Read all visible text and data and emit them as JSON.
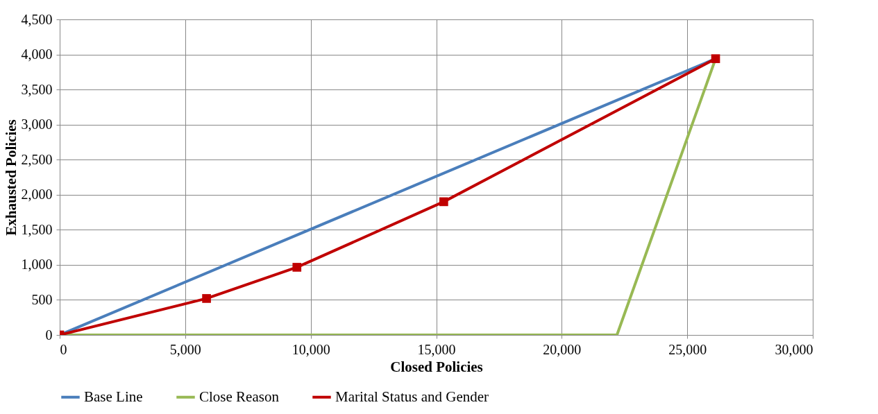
{
  "chart_data": {
    "type": "line",
    "xlabel": "Closed Policies",
    "ylabel": "Exhausted Policies",
    "xlim": [
      0,
      30000
    ],
    "xticks": [
      0,
      {
        "value": 5000,
        "label": "5,000"
      },
      {
        "value": 10000,
        "label": "10,000"
      },
      {
        "value": 15000,
        "label": "15,000"
      },
      {
        "value": 20000,
        "label": "20,000"
      },
      {
        "value": 25000,
        "label": "25,000"
      },
      {
        "value": 30000,
        "label": "30,000"
      }
    ],
    "ylim": [
      0,
      4500
    ],
    "yticks": [
      0,
      500,
      {
        "value": 1000,
        "label": "1,000"
      },
      {
        "value": 1500,
        "label": "1,500"
      },
      {
        "value": 2000,
        "label": "2,000"
      },
      {
        "value": 2500,
        "label": "2,500"
      },
      {
        "value": 3000,
        "label": "3,000"
      },
      {
        "value": 3500,
        "label": "3,500"
      },
      {
        "value": 4000,
        "label": "4,000"
      },
      {
        "value": 4500,
        "label": "4,500"
      }
    ],
    "grid": true,
    "legend": "bottom",
    "line_style": "solid",
    "series": [
      {
        "name": "Base Line",
        "color": "#4a7ebb",
        "x": [
          0,
          26130
        ],
        "values": [
          0,
          3940
        ],
        "marker": "none"
      },
      {
        "name": "Close Reason",
        "color": "#98b954",
        "x": [
          0,
          22200,
          26130
        ],
        "values": [
          0,
          0,
          3940
        ],
        "marker": "none"
      },
      {
        "name": "Marital Status and Gender",
        "color": "#c00000",
        "x": [
          0,
          5850,
          9450,
          15300,
          26130
        ],
        "values": [
          0,
          520,
          965,
          1900,
          3940
        ],
        "marker": "square"
      }
    ]
  }
}
